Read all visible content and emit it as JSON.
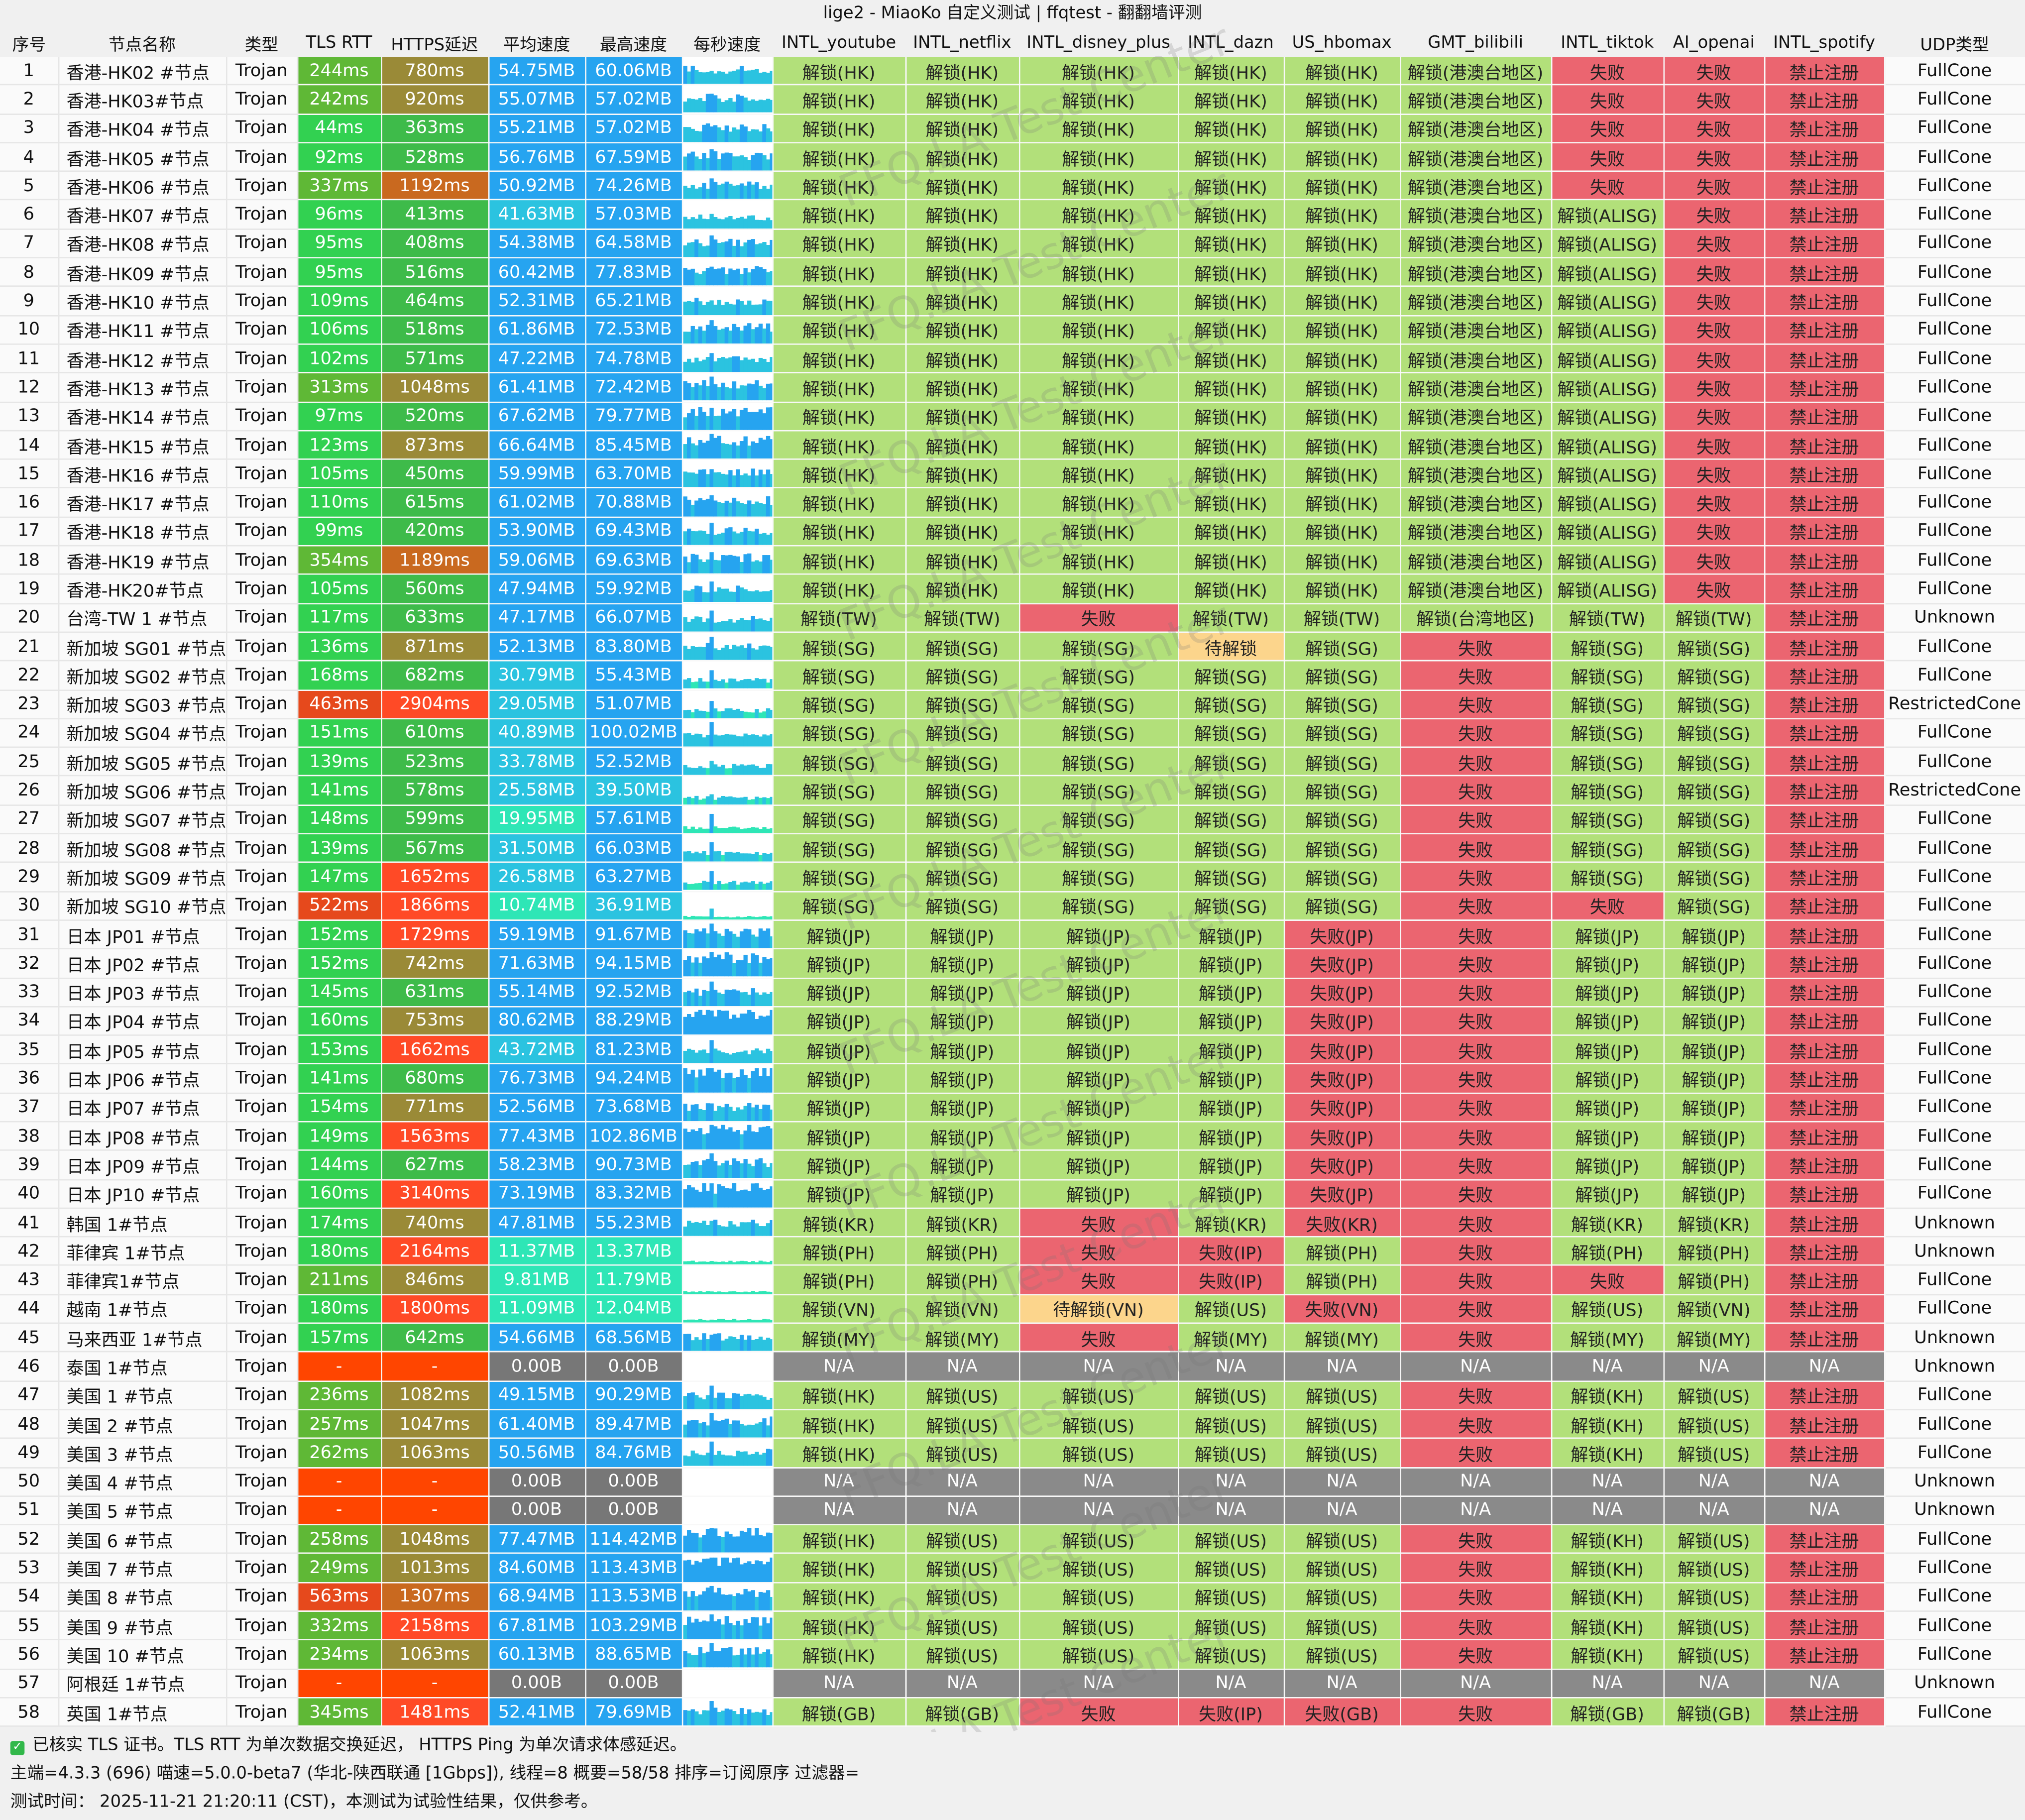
{
  "window": {
    "title": "lige2 - MiaoKo 自定义测试 | ffqtest - 翻翻墙评测"
  },
  "columns": [
    "序号",
    "节点名称",
    "类型",
    "TLS RTT",
    "HTTPS延迟",
    "平均速度",
    "最高速度",
    "每秒速度",
    "INTL_youtube",
    "INTL_netflix",
    "INTL_disney_plus",
    "INTL_dazn",
    "US_hbomax",
    "GMT_bilibili",
    "INTL_tiktok",
    "AI_openai",
    "INTL_spotify",
    "UDP类型"
  ],
  "colors": {
    "rtt_good": "#32d151",
    "rtt_mid": "#5fb836",
    "rtt_bad": "#e6491c",
    "rtt_na": "#ff4500",
    "https_good": "#3ebb4a",
    "https_mid": "#9a8a37",
    "https_warn": "#c9691f",
    "https_bad": "#ff4a26",
    "speed_hi": "#26a4f0",
    "speed_mid": "#2bc3e0",
    "speed_low": "#2ee6b6",
    "speed_na": "#777777",
    "unlock": "#b2e07a",
    "fail": "#eb6570",
    "pending": "#fcd58c",
    "na": "#8a8a8a"
  },
  "rows": [
    [
      "1",
      "香港-HK02 #节点",
      "Trojan",
      "244ms",
      "780ms",
      "54.75MB",
      "60.06MB",
      "解锁(HK)",
      "解锁(HK)",
      "解锁(HK)",
      "解锁(HK)",
      "解锁(HK)",
      "解锁(港澳台地区)",
      "失败",
      "失败",
      "禁止注册",
      "FullCone"
    ],
    [
      "2",
      "香港-HK03#节点",
      "Trojan",
      "242ms",
      "920ms",
      "55.07MB",
      "57.02MB",
      "解锁(HK)",
      "解锁(HK)",
      "解锁(HK)",
      "解锁(HK)",
      "解锁(HK)",
      "解锁(港澳台地区)",
      "失败",
      "失败",
      "禁止注册",
      "FullCone"
    ],
    [
      "3",
      "香港-HK04 #节点",
      "Trojan",
      "44ms",
      "363ms",
      "55.21MB",
      "57.02MB",
      "解锁(HK)",
      "解锁(HK)",
      "解锁(HK)",
      "解锁(HK)",
      "解锁(HK)",
      "解锁(港澳台地区)",
      "失败",
      "失败",
      "禁止注册",
      "FullCone"
    ],
    [
      "4",
      "香港-HK05 #节点",
      "Trojan",
      "92ms",
      "528ms",
      "56.76MB",
      "67.59MB",
      "解锁(HK)",
      "解锁(HK)",
      "解锁(HK)",
      "解锁(HK)",
      "解锁(HK)",
      "解锁(港澳台地区)",
      "失败",
      "失败",
      "禁止注册",
      "FullCone"
    ],
    [
      "5",
      "香港-HK06 #节点",
      "Trojan",
      "337ms",
      "1192ms",
      "50.92MB",
      "74.26MB",
      "解锁(HK)",
      "解锁(HK)",
      "解锁(HK)",
      "解锁(HK)",
      "解锁(HK)",
      "解锁(港澳台地区)",
      "失败",
      "失败",
      "禁止注册",
      "FullCone"
    ],
    [
      "6",
      "香港-HK07 #节点",
      "Trojan",
      "96ms",
      "413ms",
      "41.63MB",
      "57.03MB",
      "解锁(HK)",
      "解锁(HK)",
      "解锁(HK)",
      "解锁(HK)",
      "解锁(HK)",
      "解锁(港澳台地区)",
      "解锁(ALISG)",
      "失败",
      "禁止注册",
      "FullCone"
    ],
    [
      "7",
      "香港-HK08 #节点",
      "Trojan",
      "95ms",
      "408ms",
      "54.38MB",
      "64.58MB",
      "解锁(HK)",
      "解锁(HK)",
      "解锁(HK)",
      "解锁(HK)",
      "解锁(HK)",
      "解锁(港澳台地区)",
      "解锁(ALISG)",
      "失败",
      "禁止注册",
      "FullCone"
    ],
    [
      "8",
      "香港-HK09 #节点",
      "Trojan",
      "95ms",
      "516ms",
      "60.42MB",
      "77.83MB",
      "解锁(HK)",
      "解锁(HK)",
      "解锁(HK)",
      "解锁(HK)",
      "解锁(HK)",
      "解锁(港澳台地区)",
      "解锁(ALISG)",
      "失败",
      "禁止注册",
      "FullCone"
    ],
    [
      "9",
      "香港-HK10 #节点",
      "Trojan",
      "109ms",
      "464ms",
      "52.31MB",
      "65.21MB",
      "解锁(HK)",
      "解锁(HK)",
      "解锁(HK)",
      "解锁(HK)",
      "解锁(HK)",
      "解锁(港澳台地区)",
      "解锁(ALISG)",
      "失败",
      "禁止注册",
      "FullCone"
    ],
    [
      "10",
      "香港-HK11 #节点",
      "Trojan",
      "106ms",
      "518ms",
      "61.86MB",
      "72.53MB",
      "解锁(HK)",
      "解锁(HK)",
      "解锁(HK)",
      "解锁(HK)",
      "解锁(HK)",
      "解锁(港澳台地区)",
      "解锁(ALISG)",
      "失败",
      "禁止注册",
      "FullCone"
    ],
    [
      "11",
      "香港-HK12 #节点",
      "Trojan",
      "102ms",
      "571ms",
      "47.22MB",
      "74.78MB",
      "解锁(HK)",
      "解锁(HK)",
      "解锁(HK)",
      "解锁(HK)",
      "解锁(HK)",
      "解锁(港澳台地区)",
      "解锁(ALISG)",
      "失败",
      "禁止注册",
      "FullCone"
    ],
    [
      "12",
      "香港-HK13 #节点",
      "Trojan",
      "313ms",
      "1048ms",
      "61.41MB",
      "72.42MB",
      "解锁(HK)",
      "解锁(HK)",
      "解锁(HK)",
      "解锁(HK)",
      "解锁(HK)",
      "解锁(港澳台地区)",
      "解锁(ALISG)",
      "失败",
      "禁止注册",
      "FullCone"
    ],
    [
      "13",
      "香港-HK14 #节点",
      "Trojan",
      "97ms",
      "520ms",
      "67.62MB",
      "79.77MB",
      "解锁(HK)",
      "解锁(HK)",
      "解锁(HK)",
      "解锁(HK)",
      "解锁(HK)",
      "解锁(港澳台地区)",
      "解锁(ALISG)",
      "失败",
      "禁止注册",
      "FullCone"
    ],
    [
      "14",
      "香港-HK15 #节点",
      "Trojan",
      "123ms",
      "873ms",
      "66.64MB",
      "85.45MB",
      "解锁(HK)",
      "解锁(HK)",
      "解锁(HK)",
      "解锁(HK)",
      "解锁(HK)",
      "解锁(港澳台地区)",
      "解锁(ALISG)",
      "失败",
      "禁止注册",
      "FullCone"
    ],
    [
      "15",
      "香港-HK16 #节点",
      "Trojan",
      "105ms",
      "450ms",
      "59.99MB",
      "63.70MB",
      "解锁(HK)",
      "解锁(HK)",
      "解锁(HK)",
      "解锁(HK)",
      "解锁(HK)",
      "解锁(港澳台地区)",
      "解锁(ALISG)",
      "失败",
      "禁止注册",
      "FullCone"
    ],
    [
      "16",
      "香港-HK17 #节点",
      "Trojan",
      "110ms",
      "615ms",
      "61.02MB",
      "70.88MB",
      "解锁(HK)",
      "解锁(HK)",
      "解锁(HK)",
      "解锁(HK)",
      "解锁(HK)",
      "解锁(港澳台地区)",
      "解锁(ALISG)",
      "失败",
      "禁止注册",
      "FullCone"
    ],
    [
      "17",
      "香港-HK18 #节点",
      "Trojan",
      "99ms",
      "420ms",
      "53.90MB",
      "69.43MB",
      "解锁(HK)",
      "解锁(HK)",
      "解锁(HK)",
      "解锁(HK)",
      "解锁(HK)",
      "解锁(港澳台地区)",
      "解锁(ALISG)",
      "失败",
      "禁止注册",
      "FullCone"
    ],
    [
      "18",
      "香港-HK19 #节点",
      "Trojan",
      "354ms",
      "1189ms",
      "59.06MB",
      "69.63MB",
      "解锁(HK)",
      "解锁(HK)",
      "解锁(HK)",
      "解锁(HK)",
      "解锁(HK)",
      "解锁(港澳台地区)",
      "解锁(ALISG)",
      "失败",
      "禁止注册",
      "FullCone"
    ],
    [
      "19",
      "香港-HK20#节点",
      "Trojan",
      "105ms",
      "560ms",
      "47.94MB",
      "59.92MB",
      "解锁(HK)",
      "解锁(HK)",
      "解锁(HK)",
      "解锁(HK)",
      "解锁(HK)",
      "解锁(港澳台地区)",
      "解锁(ALISG)",
      "失败",
      "禁止注册",
      "FullCone"
    ],
    [
      "20",
      "台湾-TW 1 #节点",
      "Trojan",
      "117ms",
      "633ms",
      "47.17MB",
      "66.07MB",
      "解锁(TW)",
      "解锁(TW)",
      "失败",
      "解锁(TW)",
      "解锁(TW)",
      "解锁(台湾地区)",
      "解锁(TW)",
      "解锁(TW)",
      "禁止注册",
      "Unknown"
    ],
    [
      "21",
      "新加坡 SG01 #节点",
      "Trojan",
      "136ms",
      "871ms",
      "52.13MB",
      "83.80MB",
      "解锁(SG)",
      "解锁(SG)",
      "解锁(SG)",
      "待解锁",
      "解锁(SG)",
      "失败",
      "解锁(SG)",
      "解锁(SG)",
      "禁止注册",
      "FullCone"
    ],
    [
      "22",
      "新加坡 SG02 #节点",
      "Trojan",
      "168ms",
      "682ms",
      "30.79MB",
      "55.43MB",
      "解锁(SG)",
      "解锁(SG)",
      "解锁(SG)",
      "解锁(SG)",
      "解锁(SG)",
      "失败",
      "解锁(SG)",
      "解锁(SG)",
      "禁止注册",
      "FullCone"
    ],
    [
      "23",
      "新加坡 SG03 #节点",
      "Trojan",
      "463ms",
      "2904ms",
      "29.05MB",
      "51.07MB",
      "解锁(SG)",
      "解锁(SG)",
      "解锁(SG)",
      "解锁(SG)",
      "解锁(SG)",
      "失败",
      "解锁(SG)",
      "解锁(SG)",
      "禁止注册",
      "RestrictedCone"
    ],
    [
      "24",
      "新加坡 SG04 #节点",
      "Trojan",
      "151ms",
      "610ms",
      "40.89MB",
      "100.02MB",
      "解锁(SG)",
      "解锁(SG)",
      "解锁(SG)",
      "解锁(SG)",
      "解锁(SG)",
      "失败",
      "解锁(SG)",
      "解锁(SG)",
      "禁止注册",
      "FullCone"
    ],
    [
      "25",
      "新加坡 SG05 #节点",
      "Trojan",
      "139ms",
      "523ms",
      "33.78MB",
      "52.52MB",
      "解锁(SG)",
      "解锁(SG)",
      "解锁(SG)",
      "解锁(SG)",
      "解锁(SG)",
      "失败",
      "解锁(SG)",
      "解锁(SG)",
      "禁止注册",
      "FullCone"
    ],
    [
      "26",
      "新加坡 SG06 #节点",
      "Trojan",
      "141ms",
      "578ms",
      "25.58MB",
      "39.50MB",
      "解锁(SG)",
      "解锁(SG)",
      "解锁(SG)",
      "解锁(SG)",
      "解锁(SG)",
      "失败",
      "解锁(SG)",
      "解锁(SG)",
      "禁止注册",
      "RestrictedCone"
    ],
    [
      "27",
      "新加坡 SG07 #节点",
      "Trojan",
      "148ms",
      "599ms",
      "19.95MB",
      "57.61MB",
      "解锁(SG)",
      "解锁(SG)",
      "解锁(SG)",
      "解锁(SG)",
      "解锁(SG)",
      "失败",
      "解锁(SG)",
      "解锁(SG)",
      "禁止注册",
      "FullCone"
    ],
    [
      "28",
      "新加坡 SG08 #节点",
      "Trojan",
      "139ms",
      "567ms",
      "31.50MB",
      "66.03MB",
      "解锁(SG)",
      "解锁(SG)",
      "解锁(SG)",
      "解锁(SG)",
      "解锁(SG)",
      "失败",
      "解锁(SG)",
      "解锁(SG)",
      "禁止注册",
      "FullCone"
    ],
    [
      "29",
      "新加坡 SG09 #节点",
      "Trojan",
      "147ms",
      "1652ms",
      "26.58MB",
      "63.27MB",
      "解锁(SG)",
      "解锁(SG)",
      "解锁(SG)",
      "解锁(SG)",
      "解锁(SG)",
      "失败",
      "解锁(SG)",
      "解锁(SG)",
      "禁止注册",
      "FullCone"
    ],
    [
      "30",
      "新加坡 SG10 #节点",
      "Trojan",
      "522ms",
      "1866ms",
      "10.74MB",
      "36.91MB",
      "解锁(SG)",
      "解锁(SG)",
      "解锁(SG)",
      "解锁(SG)",
      "解锁(SG)",
      "失败",
      "失败",
      "解锁(SG)",
      "禁止注册",
      "FullCone"
    ],
    [
      "31",
      "日本 JP01 #节点",
      "Trojan",
      "152ms",
      "1729ms",
      "59.19MB",
      "91.67MB",
      "解锁(JP)",
      "解锁(JP)",
      "解锁(JP)",
      "解锁(JP)",
      "失败(JP)",
      "失败",
      "解锁(JP)",
      "解锁(JP)",
      "禁止注册",
      "FullCone"
    ],
    [
      "32",
      "日本 JP02 #节点",
      "Trojan",
      "152ms",
      "742ms",
      "71.63MB",
      "94.15MB",
      "解锁(JP)",
      "解锁(JP)",
      "解锁(JP)",
      "解锁(JP)",
      "失败(JP)",
      "失败",
      "解锁(JP)",
      "解锁(JP)",
      "禁止注册",
      "FullCone"
    ],
    [
      "33",
      "日本 JP03 #节点",
      "Trojan",
      "145ms",
      "631ms",
      "55.14MB",
      "92.52MB",
      "解锁(JP)",
      "解锁(JP)",
      "解锁(JP)",
      "解锁(JP)",
      "失败(JP)",
      "失败",
      "解锁(JP)",
      "解锁(JP)",
      "禁止注册",
      "FullCone"
    ],
    [
      "34",
      "日本 JP04 #节点",
      "Trojan",
      "160ms",
      "753ms",
      "80.62MB",
      "88.29MB",
      "解锁(JP)",
      "解锁(JP)",
      "解锁(JP)",
      "解锁(JP)",
      "失败(JP)",
      "失败",
      "解锁(JP)",
      "解锁(JP)",
      "禁止注册",
      "FullCone"
    ],
    [
      "35",
      "日本 JP05 #节点",
      "Trojan",
      "153ms",
      "1662ms",
      "43.72MB",
      "81.23MB",
      "解锁(JP)",
      "解锁(JP)",
      "解锁(JP)",
      "解锁(JP)",
      "失败(JP)",
      "失败",
      "解锁(JP)",
      "解锁(JP)",
      "禁止注册",
      "FullCone"
    ],
    [
      "36",
      "日本 JP06 #节点",
      "Trojan",
      "141ms",
      "680ms",
      "76.73MB",
      "94.24MB",
      "解锁(JP)",
      "解锁(JP)",
      "解锁(JP)",
      "解锁(JP)",
      "失败(JP)",
      "失败",
      "解锁(JP)",
      "解锁(JP)",
      "禁止注册",
      "FullCone"
    ],
    [
      "37",
      "日本 JP07 #节点",
      "Trojan",
      "154ms",
      "771ms",
      "52.56MB",
      "73.68MB",
      "解锁(JP)",
      "解锁(JP)",
      "解锁(JP)",
      "解锁(JP)",
      "失败(JP)",
      "失败",
      "解锁(JP)",
      "解锁(JP)",
      "禁止注册",
      "FullCone"
    ],
    [
      "38",
      "日本 JP08 #节点",
      "Trojan",
      "149ms",
      "1563ms",
      "77.43MB",
      "102.86MB",
      "解锁(JP)",
      "解锁(JP)",
      "解锁(JP)",
      "解锁(JP)",
      "失败(JP)",
      "失败",
      "解锁(JP)",
      "解锁(JP)",
      "禁止注册",
      "FullCone"
    ],
    [
      "39",
      "日本 JP09 #节点",
      "Trojan",
      "144ms",
      "627ms",
      "58.23MB",
      "90.73MB",
      "解锁(JP)",
      "解锁(JP)",
      "解锁(JP)",
      "解锁(JP)",
      "失败(JP)",
      "失败",
      "解锁(JP)",
      "解锁(JP)",
      "禁止注册",
      "FullCone"
    ],
    [
      "40",
      "日本 JP10 #节点",
      "Trojan",
      "160ms",
      "3140ms",
      "73.19MB",
      "83.32MB",
      "解锁(JP)",
      "解锁(JP)",
      "解锁(JP)",
      "解锁(JP)",
      "失败(JP)",
      "失败",
      "解锁(JP)",
      "解锁(JP)",
      "禁止注册",
      "FullCone"
    ],
    [
      "41",
      "韩国 1#节点",
      "Trojan",
      "174ms",
      "740ms",
      "47.81MB",
      "55.23MB",
      "解锁(KR)",
      "解锁(KR)",
      "失败",
      "解锁(KR)",
      "失败(KR)",
      "失败",
      "解锁(KR)",
      "解锁(KR)",
      "禁止注册",
      "Unknown"
    ],
    [
      "42",
      "菲律宾 1#节点",
      "Trojan",
      "180ms",
      "2164ms",
      "11.37MB",
      "13.37MB",
      "解锁(PH)",
      "解锁(PH)",
      "失败",
      "失败(IP)",
      "解锁(PH)",
      "失败",
      "解锁(PH)",
      "解锁(PH)",
      "禁止注册",
      "Unknown"
    ],
    [
      "43",
      "菲律宾1#节点",
      "Trojan",
      "211ms",
      "846ms",
      "9.81MB",
      "11.79MB",
      "解锁(PH)",
      "解锁(PH)",
      "失败",
      "失败(IP)",
      "解锁(PH)",
      "失败",
      "失败",
      "解锁(PH)",
      "禁止注册",
      "FullCone"
    ],
    [
      "44",
      "越南 1#节点",
      "Trojan",
      "180ms",
      "1800ms",
      "11.09MB",
      "12.04MB",
      "解锁(VN)",
      "解锁(VN)",
      "待解锁(VN)",
      "解锁(US)",
      "失败(VN)",
      "失败",
      "解锁(US)",
      "解锁(VN)",
      "禁止注册",
      "FullCone"
    ],
    [
      "45",
      "马来西亚 1#节点",
      "Trojan",
      "157ms",
      "642ms",
      "54.66MB",
      "68.56MB",
      "解锁(MY)",
      "解锁(MY)",
      "失败",
      "解锁(MY)",
      "解锁(MY)",
      "失败",
      "解锁(MY)",
      "解锁(MY)",
      "禁止注册",
      "Unknown"
    ],
    [
      "46",
      "泰国 1#节点",
      "Trojan",
      "-",
      "-",
      "0.00B",
      "0.00B",
      "N/A",
      "N/A",
      "N/A",
      "N/A",
      "N/A",
      "N/A",
      "N/A",
      "N/A",
      "N/A",
      "Unknown"
    ],
    [
      "47",
      "美国 1 #节点",
      "Trojan",
      "236ms",
      "1082ms",
      "49.15MB",
      "90.29MB",
      "解锁(HK)",
      "解锁(US)",
      "解锁(US)",
      "解锁(US)",
      "解锁(US)",
      "失败",
      "解锁(KH)",
      "解锁(US)",
      "禁止注册",
      "FullCone"
    ],
    [
      "48",
      "美国 2 #节点",
      "Trojan",
      "257ms",
      "1047ms",
      "61.40MB",
      "89.47MB",
      "解锁(HK)",
      "解锁(US)",
      "解锁(US)",
      "解锁(US)",
      "解锁(US)",
      "失败",
      "解锁(KH)",
      "解锁(US)",
      "禁止注册",
      "FullCone"
    ],
    [
      "49",
      "美国 3 #节点",
      "Trojan",
      "262ms",
      "1063ms",
      "50.56MB",
      "84.76MB",
      "解锁(HK)",
      "解锁(US)",
      "解锁(US)",
      "解锁(US)",
      "解锁(US)",
      "失败",
      "解锁(KH)",
      "解锁(US)",
      "禁止注册",
      "FullCone"
    ],
    [
      "50",
      "美国 4 #节点",
      "Trojan",
      "-",
      "-",
      "0.00B",
      "0.00B",
      "N/A",
      "N/A",
      "N/A",
      "N/A",
      "N/A",
      "N/A",
      "N/A",
      "N/A",
      "N/A",
      "Unknown"
    ],
    [
      "51",
      "美国 5 #节点",
      "Trojan",
      "-",
      "-",
      "0.00B",
      "0.00B",
      "N/A",
      "N/A",
      "N/A",
      "N/A",
      "N/A",
      "N/A",
      "N/A",
      "N/A",
      "N/A",
      "Unknown"
    ],
    [
      "52",
      "美国 6 #节点",
      "Trojan",
      "258ms",
      "1048ms",
      "77.47MB",
      "114.42MB",
      "解锁(HK)",
      "解锁(US)",
      "解锁(US)",
      "解锁(US)",
      "解锁(US)",
      "失败",
      "解锁(KH)",
      "解锁(US)",
      "禁止注册",
      "FullCone"
    ],
    [
      "53",
      "美国 7 #节点",
      "Trojan",
      "249ms",
      "1013ms",
      "84.60MB",
      "113.43MB",
      "解锁(HK)",
      "解锁(US)",
      "解锁(US)",
      "解锁(US)",
      "解锁(US)",
      "失败",
      "解锁(KH)",
      "解锁(US)",
      "禁止注册",
      "FullCone"
    ],
    [
      "54",
      "美国 8 #节点",
      "Trojan",
      "563ms",
      "1307ms",
      "68.94MB",
      "113.53MB",
      "解锁(HK)",
      "解锁(US)",
      "解锁(US)",
      "解锁(US)",
      "解锁(US)",
      "失败",
      "解锁(KH)",
      "解锁(US)",
      "禁止注册",
      "FullCone"
    ],
    [
      "55",
      "美国 9 #节点",
      "Trojan",
      "332ms",
      "2158ms",
      "67.81MB",
      "103.29MB",
      "解锁(HK)",
      "解锁(US)",
      "解锁(US)",
      "解锁(US)",
      "解锁(US)",
      "失败",
      "解锁(KH)",
      "解锁(US)",
      "禁止注册",
      "FullCone"
    ],
    [
      "56",
      "美国 10 #节点",
      "Trojan",
      "234ms",
      "1063ms",
      "60.13MB",
      "88.65MB",
      "解锁(HK)",
      "解锁(US)",
      "解锁(US)",
      "解锁(US)",
      "解锁(US)",
      "失败",
      "解锁(KH)",
      "解锁(US)",
      "禁止注册",
      "FullCone"
    ],
    [
      "57",
      "阿根廷 1#节点",
      "Trojan",
      "-",
      "-",
      "0.00B",
      "0.00B",
      "N/A",
      "N/A",
      "N/A",
      "N/A",
      "N/A",
      "N/A",
      "N/A",
      "N/A",
      "N/A",
      "Unknown"
    ],
    [
      "58",
      "英国 1#节点",
      "Trojan",
      "345ms",
      "1481ms",
      "52.41MB",
      "79.69MB",
      "解锁(GB)",
      "解锁(GB)",
      "失败",
      "失败(IP)",
      "失败(GB)",
      "失败",
      "解锁(GB)",
      "解锁(GB)",
      "禁止注册",
      "FullCone"
    ]
  ],
  "watermark": "FFQ.LA Test Center",
  "footer": {
    "line1": "已核实 TLS 证书。TLS RTT 为单次数据交换延迟， HTTPS Ping 为单次请求体感延迟。",
    "line2": "主端=4.3.3 (696) 喵速=5.0.0-beta7 (华北-陕西联通 [1Gbps]), 线程=8 概要=58/58 排序=订阅原序 过滤器=",
    "line3": "测试时间： 2025-11-21 21:20:11 (CST)，本测试为试验性结果，仅供参考。"
  }
}
